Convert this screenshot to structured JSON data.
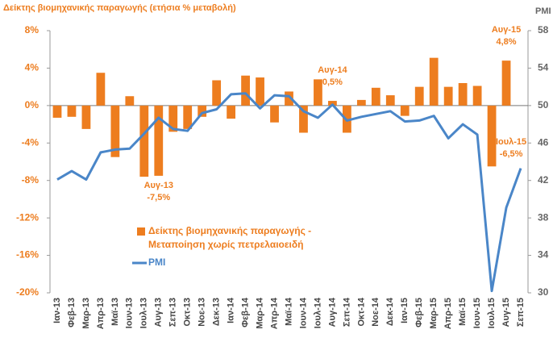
{
  "chart_data": {
    "type": "bar-line",
    "title": "Δείκτης βιομηχανικής παραγωγής (ετήσια % μεταβολή)",
    "y2_title": "PMI",
    "categories": [
      "Ιαν-13",
      "Φεβ-13",
      "Μαρ-13",
      "Απρ-13",
      "Μαϊ-13",
      "Ιουν-13",
      "Ιουλ-13",
      "Αυγ-13",
      "Σεπ-13",
      "Οκτ-13",
      "Νοε-13",
      "Δεκ-13",
      "Ιαν-14",
      "Φεβ-14",
      "Μαρ-14",
      "Απρ-14",
      "Μαϊ-14",
      "Ιουν-14",
      "Ιουλ-14",
      "Αυγ-14",
      "Σεπ-14",
      "Οκτ-14",
      "Νοε-14",
      "Δεκ-14",
      "Ιαν-15",
      "Φεβ-15",
      "Μαρ-15",
      "Απρ-15",
      "Μαϊ-15",
      "Ιουν-15",
      "Ιουλ-15",
      "Αυγ-15",
      "Σεπ-15"
    ],
    "series": [
      {
        "name": "Δείκτης βιομηχανικής παραγωγής - Μεταποίηση χωρίς πετρελαιοειδή",
        "kind": "bar",
        "color": "#ed7d1f",
        "values": [
          -1.3,
          -1.2,
          -2.5,
          3.5,
          -5.5,
          1.0,
          -7.6,
          -7.5,
          -2.8,
          -2.5,
          -1.2,
          2.7,
          -1.4,
          3.2,
          3.0,
          -1.8,
          1.5,
          -2.9,
          2.8,
          0.5,
          -2.9,
          0.6,
          1.9,
          1.1,
          -1.1,
          2.0,
          5.1,
          2.0,
          2.4,
          2.1,
          -6.5,
          4.8,
          null
        ],
        "value_labels": [
          null,
          null,
          null,
          null,
          null,
          null,
          null,
          "-7,5%",
          null,
          null,
          null,
          null,
          null,
          null,
          null,
          null,
          null,
          null,
          null,
          "0,5%",
          null,
          null,
          null,
          null,
          null,
          null,
          null,
          null,
          null,
          null,
          "-6,5%",
          "4,8%",
          null
        ]
      },
      {
        "name": "PMI",
        "kind": "line",
        "axis": "y2",
        "color": "#4a86c8",
        "values": [
          42.1,
          43.0,
          42.1,
          45.0,
          45.3,
          45.4,
          47.0,
          48.7,
          47.5,
          47.3,
          49.2,
          49.6,
          51.2,
          51.3,
          49.7,
          51.1,
          51.0,
          49.4,
          48.7,
          50.1,
          48.4,
          48.8,
          49.1,
          49.4,
          48.3,
          48.4,
          48.9,
          46.5,
          48.0,
          46.9,
          30.2,
          39.1,
          43.3
        ]
      }
    ],
    "ylim": [
      -20,
      8
    ],
    "yticks": [
      {
        "value": -20,
        "label": "-20%"
      },
      {
        "value": -16,
        "label": "-16%"
      },
      {
        "value": -12,
        "label": "-12%"
      },
      {
        "value": -8,
        "label": "-8%"
      },
      {
        "value": -4,
        "label": "-4%"
      },
      {
        "value": 0,
        "label": "0%"
      },
      {
        "value": 4,
        "label": "4%"
      },
      {
        "value": 8,
        "label": "8%"
      }
    ],
    "y2lim": [
      30,
      58
    ],
    "y2ticks": [
      30,
      34,
      38,
      42,
      46,
      50,
      54,
      58
    ],
    "grid": false
  }
}
